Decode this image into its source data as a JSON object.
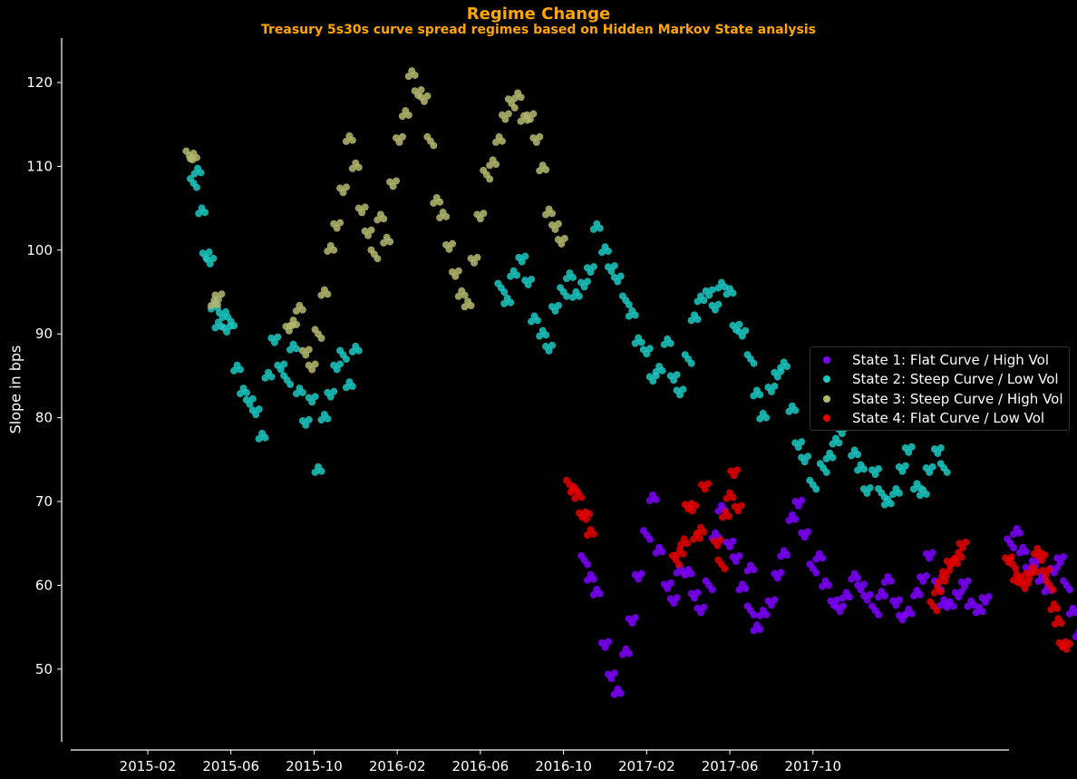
{
  "chart_data": {
    "type": "scatter",
    "title": "Regime Change",
    "subtitle": "Treasury 5s30s curve spread regimes based on Hidden Markov State analysis",
    "xlabel": "",
    "ylabel": "Slope in bps",
    "ylim": [
      41,
      126
    ],
    "xlim": [
      "2014-10-20",
      "2017-12-31"
    ],
    "grid": false,
    "legend_position": "center right",
    "x_ticks": [
      "2015-02",
      "2015-06",
      "2015-10",
      "2016-02",
      "2016-06",
      "2016-10",
      "2017-02",
      "2017-06",
      "2017-10"
    ],
    "y_ticks": [
      50,
      60,
      70,
      80,
      90,
      100,
      110,
      120
    ],
    "series": [
      {
        "name": "State 1: Flat Curve / High Vol",
        "color": "#7F00FF",
        "segments": [
          {
            "x_month": [
              22.0,
              22.3,
              22.6,
              23.0,
              23.3,
              23.6,
              24.0,
              24.3,
              24.6,
              25.0,
              25.3,
              25.6,
              26.0,
              26.3,
              26.6,
              27.0,
              27.3,
              27.6,
              28.0,
              28.3,
              28.6,
              29.0,
              29.3,
              29.6,
              30.0
            ],
            "y": [
              63,
              61,
              59,
              53,
              49,
              47.5,
              52,
              56,
              61,
              66,
              70.5,
              64,
              60,
              58,
              62,
              61.5,
              59,
              57,
              60,
              66,
              69,
              65,
              63,
              60,
              62
            ]
          },
          {
            "x_month": [
              30.0,
              30.3,
              30.6,
              31.0,
              31.3,
              31.6,
              32.0,
              32.3,
              32.6,
              33.0,
              33.3,
              33.6,
              34.0,
              34.3,
              34.6,
              35.0,
              35.3,
              35.6,
              36.0,
              36.3,
              36.6,
              37.0,
              37.3,
              37.6,
              38.0,
              38.3,
              38.6,
              39.0,
              39.3,
              39.6,
              40.0,
              40.3,
              40.6,
              41.0,
              41.3
            ],
            "y": [
              57,
              55,
              56.5,
              58,
              61,
              64,
              68,
              70,
              66,
              62,
              63.5,
              60,
              58,
              57,
              59,
              61,
              60,
              58.5,
              57,
              59,
              60.5,
              58,
              56,
              57,
              59,
              61,
              63.5,
              60,
              58,
              57.5,
              59,
              60,
              58,
              57,
              58.5
            ]
          },
          {
            "x_month": [
              42.5,
              42.8,
              43.1,
              43.4,
              43.7,
              44.0,
              44.3,
              44.6,
              44.9,
              45.2,
              45.5,
              45.8,
              46.1,
              46.4,
              46.7,
              47.0,
              47.3,
              47.6,
              48.0,
              48.3,
              48.6,
              48.9,
              49.2
            ],
            "y": [
              65,
              66.5,
              64,
              62,
              62.5,
              61,
              59.5,
              62,
              63,
              60,
              57,
              54,
              56.5,
              54,
              53,
              50,
              48,
              51,
              52,
              50,
              47,
              45,
              47
            ]
          }
        ]
      },
      {
        "name": "State 2: Steep Curve / Low Vol",
        "color": "#1CC8C2",
        "segments": [
          {
            "x_month": [
              3.2,
              3.4,
              3.6,
              3.8,
              4.0,
              4.2,
              4.4,
              4.6,
              4.8,
              5.0,
              5.3,
              5.6,
              5.9,
              6.2,
              6.5,
              6.8,
              7.1,
              7.4,
              7.7,
              8.0,
              8.3,
              8.6,
              8.9,
              9.2,
              9.5,
              9.8,
              10.1,
              10.4,
              10.7,
              11.0
            ],
            "y": [
              108,
              109.5,
              104.5,
              99.5,
              98.5,
              93.5,
              91,
              92.5,
              90.5,
              91.5,
              86,
              83,
              82,
              80.5,
              78,
              85,
              89.5,
              86,
              84.5,
              88.5,
              83,
              79.5,
              82,
              74,
              80,
              83,
              86,
              87.5,
              84,
              88
            ]
          },
          {
            "x_month": [
              18.0,
              18.3,
              18.6,
              19.0,
              19.3,
              19.6,
              20.0,
              20.3,
              20.6,
              21.0,
              21.3,
              21.6,
              22.0,
              22.3,
              22.6,
              23.0,
              23.3,
              23.6,
              24.0,
              24.3,
              24.6,
              25.0,
              25.3,
              25.6,
              26.0,
              26.3,
              26.6,
              27.0,
              27.3,
              27.6,
              28.0,
              28.3,
              28.6,
              29.0,
              29.3,
              29.6,
              30.0,
              30.3,
              30.6,
              31.0,
              31.3,
              31.6,
              32.0,
              32.3,
              32.6,
              33.0
            ],
            "y": [
              95.5,
              94,
              97,
              99,
              96,
              92,
              90,
              88.5,
              93,
              95,
              97,
              94.5,
              96,
              97.5,
              103,
              100,
              98,
              96.5,
              94,
              92.5,
              89,
              88,
              84.5,
              86,
              89,
              85,
              83,
              87,
              92,
              94,
              95,
              93,
              96,
              95,
              91,
              90,
              87,
              83,
              80,
              83.5,
              85,
              86.5,
              81,
              77,
              75,
              72
            ]
          },
          {
            "x_month": [
              33.5,
              33.8,
              34.1,
              34.4,
              34.7,
              35.0,
              35.3,
              35.6,
              36.0,
              36.3,
              36.6,
              37.0,
              37.3,
              37.6,
              38.0,
              38.3,
              38.6,
              39.0,
              39.3
            ],
            "y": [
              74,
              75.5,
              77,
              78.5,
              80,
              76,
              74,
              71.5,
              73.5,
              71,
              70,
              71,
              74,
              76,
              72,
              71,
              74,
              76,
              74
            ]
          }
        ]
      },
      {
        "name": "State 3: Steep Curve / High Vol",
        "color": "#B5B86E",
        "segments": [
          {
            "x_month": [
              3.0,
              3.2,
              4.2,
              4.4,
              7.8,
              8.0,
              8.3,
              8.6,
              8.9,
              9.2,
              9.5,
              9.8,
              10.1,
              10.4,
              10.7,
              11.0,
              11.3,
              11.6,
              11.9,
              12.2,
              12.5,
              12.8,
              13.1,
              13.4,
              13.7,
              14.0,
              14.3,
              14.6,
              14.9,
              15.2,
              15.5,
              15.8,
              16.1,
              16.4,
              16.7,
              17.0,
              17.3,
              17.6,
              17.9,
              18.2
            ],
            "y": [
              111.3,
              111.3,
              93.5,
              94.5,
              90.5,
              91.5,
              93,
              88,
              86,
              90,
              95,
              100,
              103,
              107,
              113.5,
              110,
              105,
              102,
              99.5,
              104,
              101,
              108,
              113,
              116.5,
              121,
              119,
              118,
              113,
              106,
              104,
              100.5,
              97,
              95,
              93.5,
              99,
              104,
              109,
              110.5,
              113,
              116
            ]
          },
          {
            "x_month": [
              18.5,
              18.8,
              19.1,
              19.4,
              19.7,
              20.0,
              20.3,
              20.6,
              20.9
            ],
            "y": [
              117.5,
              118.5,
              115.5,
              116,
              113,
              110,
              104.5,
              103,
              101
            ]
          }
        ]
      },
      {
        "name": "State 4: Flat Curve / Low Vol",
        "color": "#E30000",
        "segments": [
          {
            "x_month": [
              21.3,
              21.5,
              21.7,
              21.9,
              22.1,
              22.3
            ],
            "y": [
              72,
              71.5,
              70.5,
              68.5,
              68,
              66.5
            ]
          },
          {
            "x_month": [
              26.4,
              26.6,
              26.8,
              27.0,
              27.2,
              27.4,
              27.6,
              27.8,
              28.4,
              28.6,
              28.8,
              29.0,
              29.2,
              29.4
            ],
            "y": [
              63,
              64,
              65,
              69.5,
              69,
              66,
              66.5,
              72,
              65,
              62.5,
              68.5,
              70.5,
              73.5,
              69
            ]
          },
          {
            "x_month": [
              38.8,
              39.0,
              39.2,
              39.4,
              39.6,
              39.8,
              40.0,
              40.2,
              42.4,
              42.6,
              42.8,
              43.0,
              43.2,
              43.4,
              43.6,
              43.8,
              44.0,
              44.2,
              44.4,
              44.6,
              44.8,
              45.0,
              45.2
            ],
            "y": [
              57.5,
              59.5,
              60.5,
              61.5,
              62.5,
              63,
              63.5,
              65,
              63,
              62.5,
              61,
              60.5,
              60,
              61,
              62,
              64,
              63.5,
              61.5,
              60,
              57.5,
              55.5,
              53,
              52.5
            ]
          }
        ]
      }
    ]
  }
}
